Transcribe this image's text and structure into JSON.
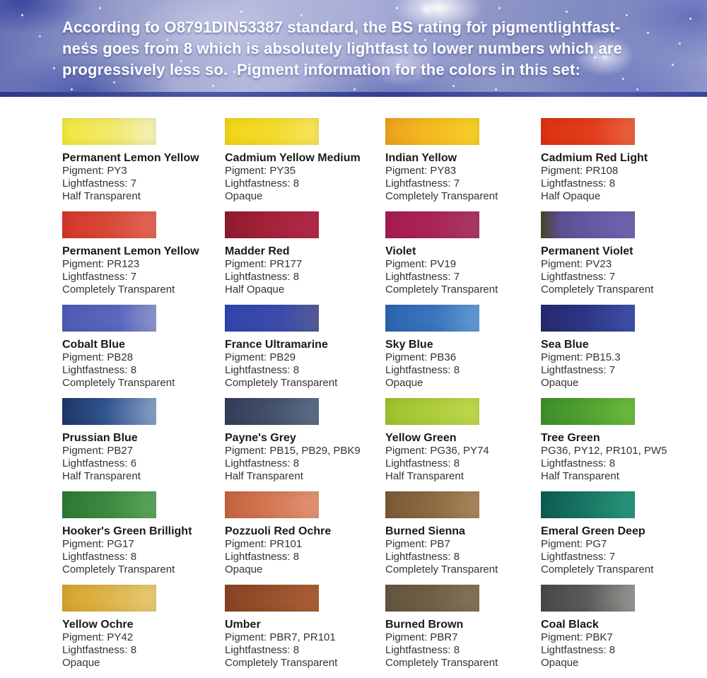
{
  "banner": {
    "text": "According to O8791DIN53387 standard, the BS rating for pigmentlightfast-\nness goes from 8 which is absolutely lightfast to lower numbers which are\nprogressively less so.  Pigment information for the colors in this set:"
  },
  "colors": [
    {
      "name": "Permanent Lemon Yellow",
      "pigment": "Pigment: PY3",
      "lightfastness": "Lightfastness: 7",
      "transparency": "Half Transparent",
      "stops": [
        "#f0e83c",
        "#f2e96e 55%",
        "#f5f1bd"
      ]
    },
    {
      "name": "Cadmium Yellow Medium",
      "pigment": "Pigment: PY35",
      "lightfastness": "Lightfastness: 8",
      "transparency": "Opaque",
      "stops": [
        "#f3d516",
        "#f4dc2e 55%",
        "#f6e560"
      ]
    },
    {
      "name": "Indian Yellow",
      "pigment": "Pigment: PY83",
      "lightfastness": "Lightfastness: 7",
      "transparency": "Completely Transparent",
      "stops": [
        "#eda01d",
        "#f3b81f 40%",
        "#f8d027"
      ]
    },
    {
      "name": "Cadmium Red Light",
      "pigment": "Pigment: PR108",
      "lightfastness": "Lightfastness: 8",
      "transparency": "Half Opaque",
      "stops": [
        "#dc3212",
        "#e23d1c 55%",
        "#ec6440"
      ]
    },
    {
      "name": "Permanent Lemon Yellow",
      "pigment": "Pigment: PR123",
      "lightfastness": "Lightfastness: 7",
      "transparency": "Completely Transparent",
      "stops": [
        "#d4372a",
        "#d94937 50%",
        "#e2685a"
      ]
    },
    {
      "name": "Madder Red",
      "pigment": "Pigment: PR177",
      "lightfastness": "Lightfastness: 8",
      "transparency": "Half Opaque",
      "stops": [
        "#8f1c2e",
        "#a42239 45%",
        "#b12a49"
      ]
    },
    {
      "name": "Violet",
      "pigment": "Pigment: PV19",
      "lightfastness": "Lightfastness: 7",
      "transparency": "Completely Transparent",
      "stops": [
        "#a61d4f",
        "#ab2458 50%",
        "#a63a67"
      ]
    },
    {
      "name": "Permanent Violet",
      "pigment": "Pigment: PV23",
      "lightfastness": "Lightfastness: 7",
      "transparency": "Completely Transparent",
      "stops": [
        "#4b4827",
        "#5c4f92 20%",
        "#675aa5 55%",
        "#7264b0"
      ]
    },
    {
      "name": "Cobalt Blue",
      "pigment": "Pigment: PB28",
      "lightfastness": "Lightfastness: 8",
      "transparency": "Completely Transparent",
      "stops": [
        "#4d5bb4",
        "#5a68bd 60%",
        "#8d96cf"
      ]
    },
    {
      "name": "France Ultramarine",
      "pigment": "Pigment: PB29",
      "lightfastness": "Lightfastness: 8",
      "transparency": "Completely Transparent",
      "stops": [
        "#3145ae",
        "#3c4cab 60%",
        "#555c99"
      ]
    },
    {
      "name": "Sky Blue",
      "pigment": "Pigment: PB36",
      "lightfastness": "Lightfastness: 8",
      "transparency": "Opaque",
      "stops": [
        "#2d64b0",
        "#3b77bf 55%",
        "#669cd4"
      ]
    },
    {
      "name": "Sea Blue",
      "pigment": "Pigment: PB15.3",
      "lightfastness": "Lightfastness: 7",
      "transparency": "Opaque",
      "stops": [
        "#252a6d",
        "#2d3585 45%",
        "#3f51a9"
      ]
    },
    {
      "name": "Prussian Blue",
      "pigment": "Pigment: PB27",
      "lightfastness": "Lightfastness: 6",
      "transparency": "Half Transparent",
      "stops": [
        "#203668",
        "#31548e 45%",
        "#87a2c8"
      ]
    },
    {
      "name": "Payne's Grey",
      "pigment": "Pigment: PB15, PB29, PBK9",
      "lightfastness": "Lightfastness: 8",
      "transparency": "Half Transparent",
      "stops": [
        "#333e58",
        "#46536d 55%",
        "#5f6e88"
      ]
    },
    {
      "name": "Yellow Green",
      "pigment": "Pigment: PG36, PY74",
      "lightfastness": "Lightfastness: 8",
      "transparency": "Half Transparent",
      "stops": [
        "#9fc22e",
        "#aecd3b 50%",
        "#bed94f"
      ]
    },
    {
      "name": "Tree Green",
      "pigment": "PG36, PY12, PR101, PW5",
      "lightfastness": "Lightfastness: 8",
      "transparency": "Half Transparent",
      "stops": [
        "#3e8e2a",
        "#4fa030 45%",
        "#6cbb3d"
      ]
    },
    {
      "name": "Hooker's Green Brillight",
      "pigment": "Pigment: PG17",
      "lightfastness": "Lightfastness: 8",
      "transparency": "Completely Transparent",
      "stops": [
        "#2d7a34",
        "#3d8b41 50%",
        "#5ea55e"
      ]
    },
    {
      "name": "Pozzuoli Red Ochre",
      "pigment": "Pigment: PR101",
      "lightfastness": "Lightfastness: 8",
      "transparency": "Opaque",
      "stops": [
        "#c76340",
        "#d47a55 50%",
        "#e39475"
      ]
    },
    {
      "name": "Burned Sienna",
      "pigment": "Pigment: PB7",
      "lightfastness": "Lightfastness: 8",
      "transparency": "Completely Transparent",
      "stops": [
        "#7a5a36",
        "#8d6c42 50%",
        "#ab875e"
      ]
    },
    {
      "name": "Emeral Green Deep",
      "pigment": "Pigment: PG7",
      "lightfastness": "Lightfastness: 7",
      "transparency": "Completely Transparent",
      "stops": [
        "#0e5c53",
        "#177663 45%",
        "#2b967d"
      ]
    },
    {
      "name": "Yellow Ochre",
      "pigment": "Pigment: PY42",
      "lightfastness": "Lightfastness: 8",
      "transparency": "Opaque",
      "stops": [
        "#d6a42c",
        "#ddb54a 50%",
        "#e7ca74"
      ]
    },
    {
      "name": "Umber",
      "pigment": "Pigment: PBR7, PR101",
      "lightfastness": "Lightfastness: 8",
      "transparency": "Completely Transparent",
      "stops": [
        "#894324",
        "#96502b 45%",
        "#aa6034"
      ]
    },
    {
      "name": "Burned Brown",
      "pigment": "Pigment: PBR7",
      "lightfastness": "Lightfastness: 8",
      "transparency": "Completely Transparent",
      "stops": [
        "#64563e",
        "#6f6147 50%",
        "#857458"
      ]
    },
    {
      "name": "Coal Black",
      "pigment": "Pigment: PBK7",
      "lightfastness": "Lightfastness: 8",
      "transparency": "Opaque",
      "stops": [
        "#474946",
        "#5b5d5a 50%",
        "#969894"
      ]
    }
  ]
}
